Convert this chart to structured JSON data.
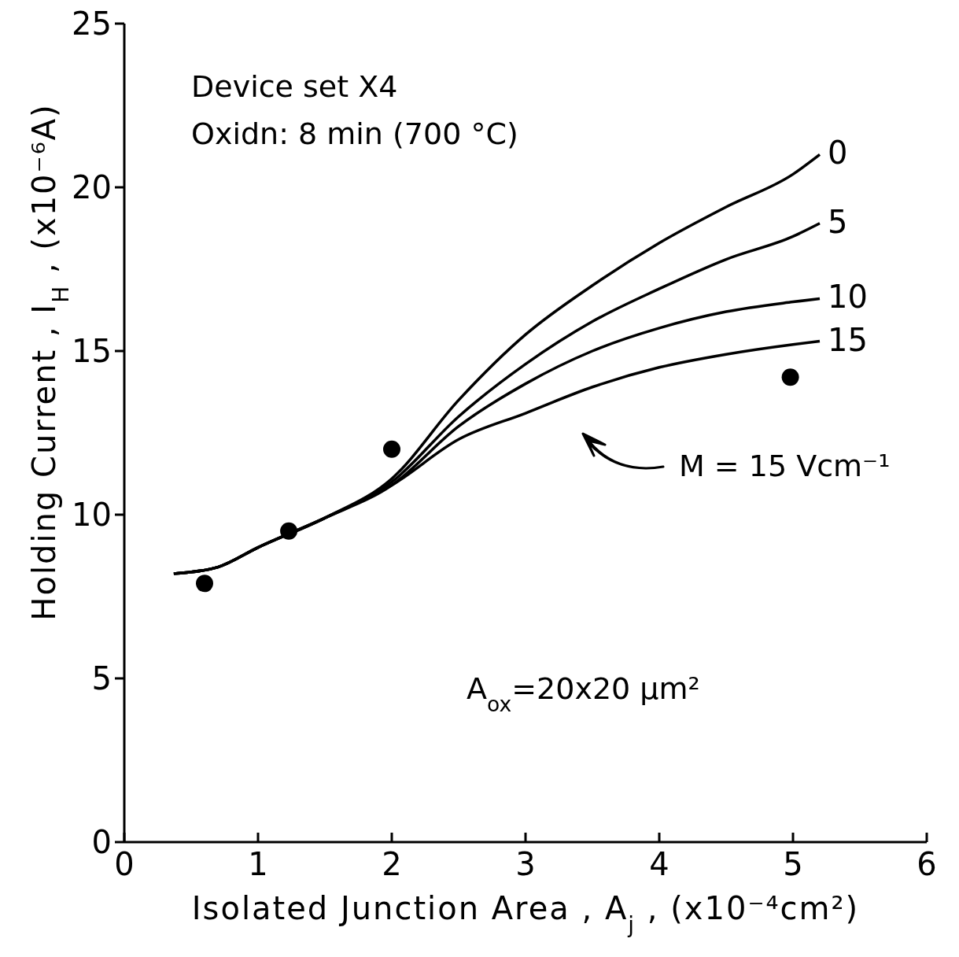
{
  "chart_data": {
    "type": "line",
    "xlabel": "Isolated Junction Area , A$_{j}$ , (x10⁻⁴cm²)",
    "ylabel": "Holding Current , I$_{H}$ , (x10⁻⁶A)",
    "xlim": [
      0,
      6
    ],
    "xticks": [
      0,
      1,
      2,
      3,
      4,
      5,
      6
    ],
    "ylim": [
      0,
      25
    ],
    "yticks": [
      0,
      5,
      10,
      15,
      20,
      25
    ],
    "grid": false,
    "line_style": "solid",
    "series": [
      {
        "name": "0",
        "color": "#000000",
        "x": [
          0.37,
          0.7,
          1,
          1.5,
          2,
          2.5,
          3,
          3.5,
          4,
          4.5,
          5,
          5.2
        ],
        "values": [
          8.2,
          8.4,
          9.0,
          9.9,
          11.1,
          13.5,
          15.5,
          17.0,
          18.3,
          19.4,
          20.4,
          21.0
        ]
      },
      {
        "name": "5",
        "color": "#000000",
        "x": [
          0.37,
          0.7,
          1,
          1.5,
          2,
          2.5,
          3,
          3.5,
          4,
          4.5,
          5,
          5.2
        ],
        "values": [
          8.2,
          8.4,
          9.0,
          9.9,
          11.0,
          13.0,
          14.6,
          15.9,
          16.9,
          17.8,
          18.5,
          18.9
        ]
      },
      {
        "name": "10",
        "color": "#000000",
        "x": [
          0.37,
          0.7,
          1,
          1.5,
          2,
          2.5,
          3,
          3.5,
          4,
          4.5,
          5,
          5.2
        ],
        "values": [
          8.2,
          8.4,
          9.0,
          9.9,
          10.9,
          12.7,
          14.0,
          15.0,
          15.7,
          16.2,
          16.5,
          16.6
        ]
      },
      {
        "name": "15",
        "color": "#000000",
        "x": [
          0.37,
          0.7,
          1,
          1.5,
          2,
          2.5,
          3,
          3.5,
          4,
          4.5,
          5,
          5.2
        ],
        "values": [
          8.2,
          8.4,
          9.0,
          9.9,
          10.9,
          12.3,
          13.1,
          13.9,
          14.5,
          14.9,
          15.2,
          15.3
        ]
      },
      {
        "type": "scatter",
        "marker": "circle",
        "color": "#000000",
        "x": [
          0.6,
          1.23,
          2.0,
          4.98
        ],
        "values": [
          7.9,
          9.5,
          12.0,
          14.2
        ]
      }
    ],
    "annotations": [
      "Device set X4",
      "Oxidn: 8 min (700 °C)",
      "A$_{ox}$=20x20 μm²",
      "M = 15 Vcm⁻¹"
    ]
  }
}
